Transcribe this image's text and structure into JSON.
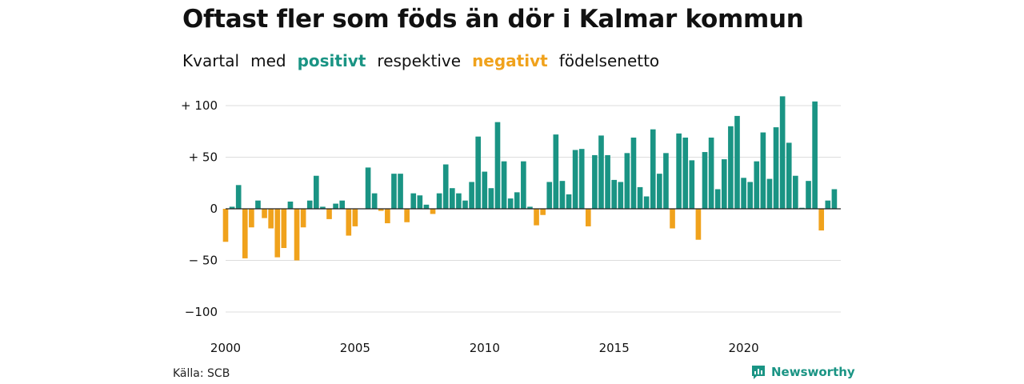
{
  "title": "Oftast fler som föds än dör i Kalmar kommun",
  "subtitle": {
    "parts": [
      "Kvartal",
      "med",
      "positivt",
      "respektive",
      "negativt",
      "födelsenetto"
    ]
  },
  "source": "Källa: SCB",
  "brand": "Newsworthy",
  "colors": {
    "positive": "#1a9484",
    "negative": "#f0a21c",
    "grid": "#dddddd",
    "axis": "#222222"
  },
  "chart_data": {
    "type": "bar",
    "x_start": 2000.0,
    "x_step": 0.25,
    "xlim": [
      2000,
      2023.75
    ],
    "ylim": [
      -100,
      110
    ],
    "y_ticks": [
      100,
      50,
      0,
      -50,
      -100
    ],
    "y_tick_labels": [
      "+ 100",
      "+  50",
      "0",
      "− 50",
      "−100"
    ],
    "x_ticks": [
      2000,
      2005,
      2010,
      2015,
      2020
    ],
    "x_tick_labels": [
      "2000",
      "2005",
      "2010",
      "2015",
      "2020"
    ],
    "grid": true,
    "values": [
      -32,
      2,
      23,
      -48,
      -18,
      8,
      -9,
      -19,
      -47,
      -38,
      7,
      -50,
      -18,
      8,
      32,
      2,
      -10,
      5,
      8,
      -26,
      -17,
      0,
      40,
      15,
      -2,
      -14,
      34,
      34,
      -13,
      15,
      13,
      4,
      -5,
      15,
      43,
      20,
      15,
      8,
      26,
      70,
      36,
      20,
      84,
      46,
      10,
      16,
      46,
      2,
      -16,
      -6,
      26,
      72,
      27,
      14,
      57,
      58,
      -17,
      52,
      71,
      52,
      28,
      26,
      54,
      69,
      21,
      12,
      77,
      34,
      54,
      -19,
      73,
      69,
      47,
      -30,
      55,
      69,
      19,
      48,
      80,
      90,
      30,
      26,
      46,
      74,
      29,
      79,
      109,
      64,
      32,
      1,
      27,
      104,
      -21,
      8,
      19
    ]
  }
}
